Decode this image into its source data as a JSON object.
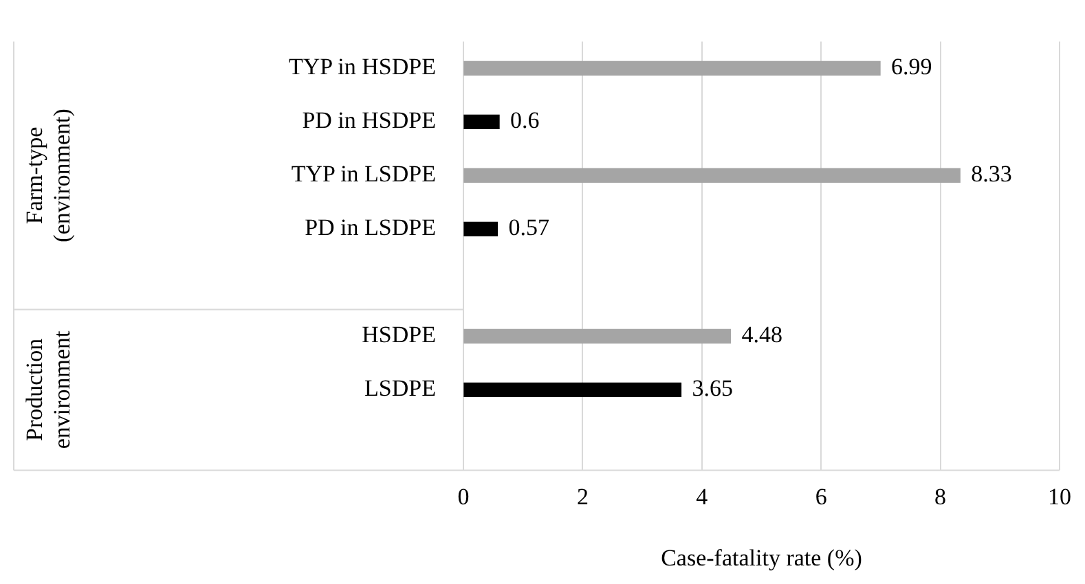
{
  "chart_data": {
    "type": "bar",
    "orientation": "horizontal",
    "xlabel": "Case-fatality rate (%)",
    "categories": [
      "TYP in HSDPE",
      "PD in HSDPE",
      "TYP in LSDPE",
      "PD in LSDPE",
      null,
      "HSDPE",
      "LSDPE",
      null
    ],
    "values": [
      6.99,
      0.6,
      8.33,
      0.57,
      null,
      4.48,
      3.65,
      null
    ],
    "colors": [
      "#a5a5a5",
      "#000000",
      "#a5a5a5",
      "#000000",
      "#a5a5a5",
      "#a5a5a5",
      "#000000",
      "#a5a5a5"
    ],
    "xlim": [
      0,
      10
    ],
    "xticks": [
      0,
      2,
      4,
      6,
      8,
      10
    ],
    "grid": "x",
    "legend": false,
    "data_labels": true,
    "annotations": [
      "Farm-type (environment)",
      "Production environment"
    ]
  }
}
